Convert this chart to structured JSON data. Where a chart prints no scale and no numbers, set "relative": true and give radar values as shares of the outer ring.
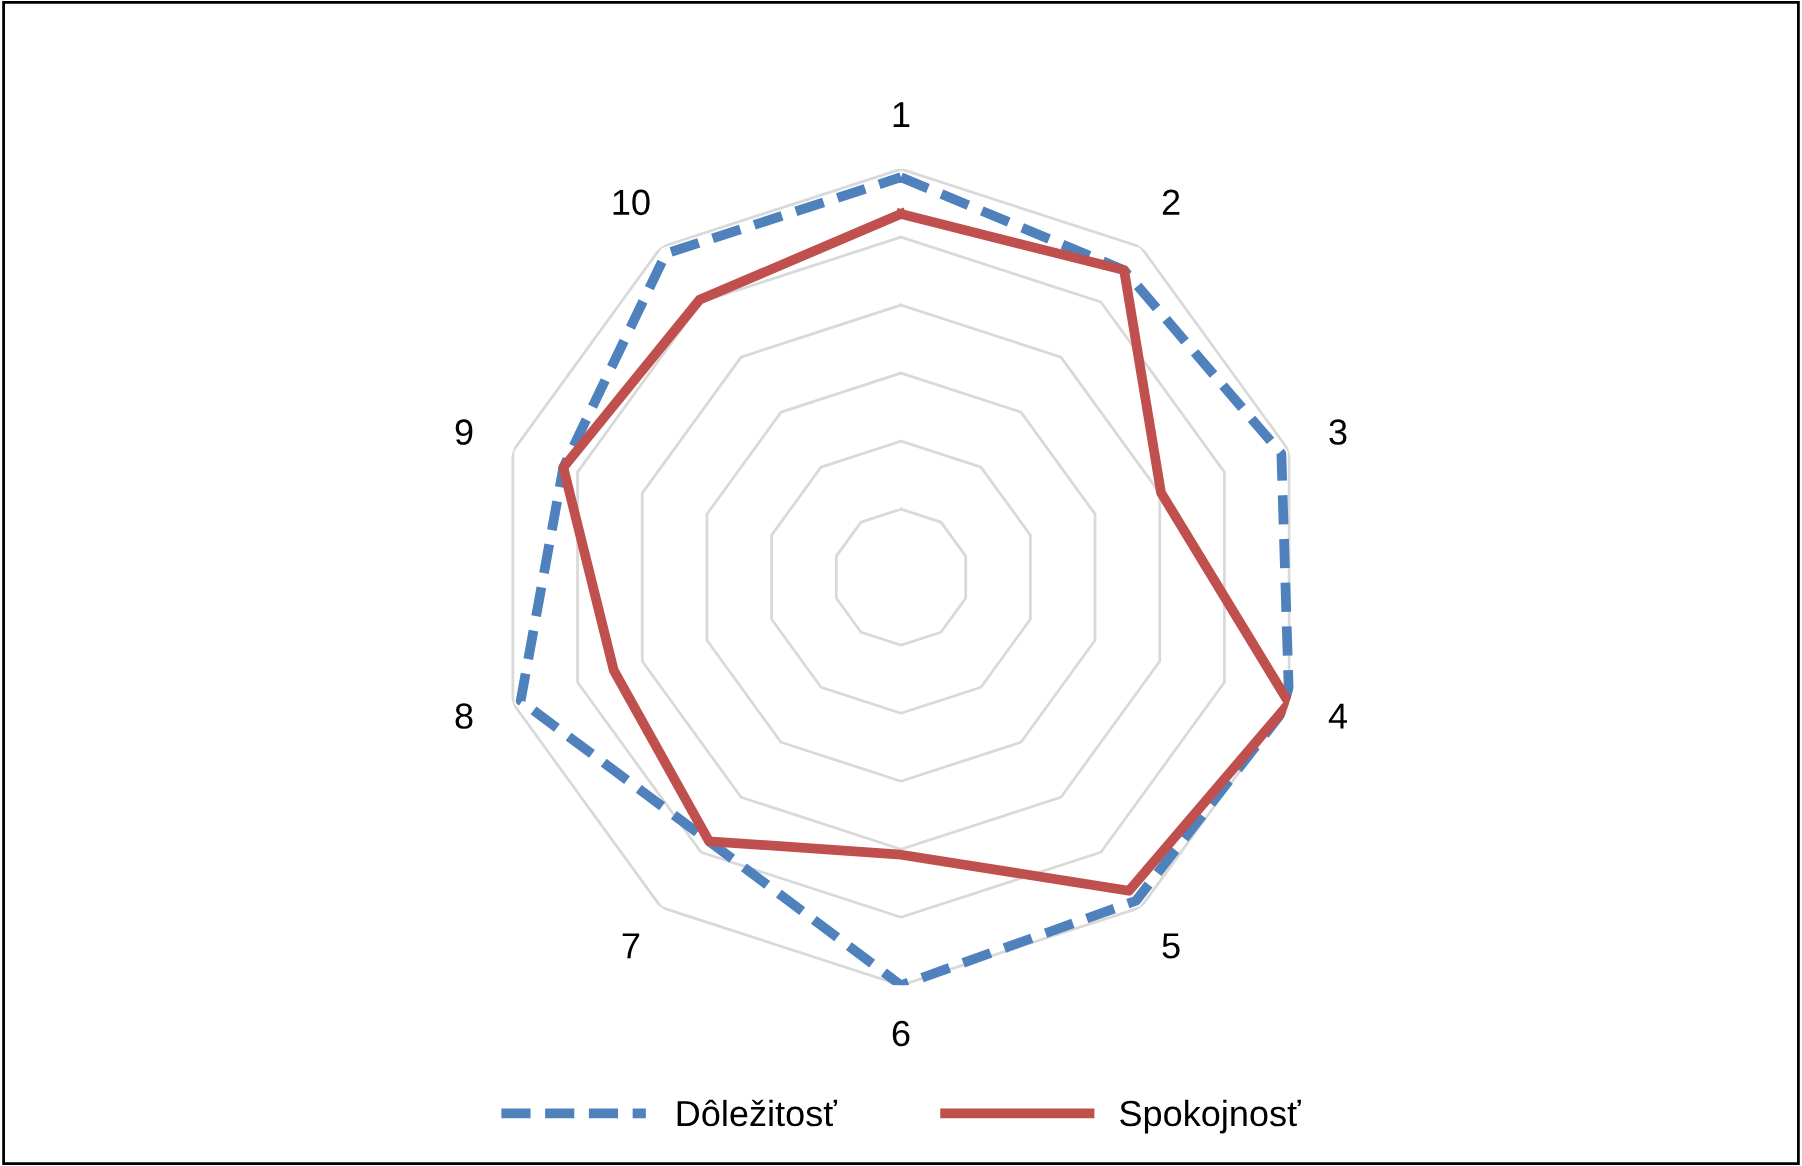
{
  "chart_data": {
    "type": "radar",
    "relative": true,
    "categories": [
      "1",
      "2",
      "3",
      "4",
      "5",
      "6",
      "7",
      "8",
      "9",
      "10"
    ],
    "series": [
      {
        "name": "Dôležitosť",
        "color": "#4f81bd",
        "line_style": "dashed",
        "values": [
          0.98,
          0.93,
          0.98,
          1.0,
          0.98,
          1.0,
          0.8,
          0.98,
          0.87,
          0.98
        ]
      },
      {
        "name": "Spokojnosť",
        "color": "#c0504d",
        "line_style": "solid",
        "values": [
          0.89,
          0.93,
          0.67,
          1.0,
          0.95,
          0.68,
          0.8,
          0.74,
          0.87,
          0.84
        ]
      }
    ],
    "legend": "bottom",
    "grid": true,
    "marker": "none"
  }
}
